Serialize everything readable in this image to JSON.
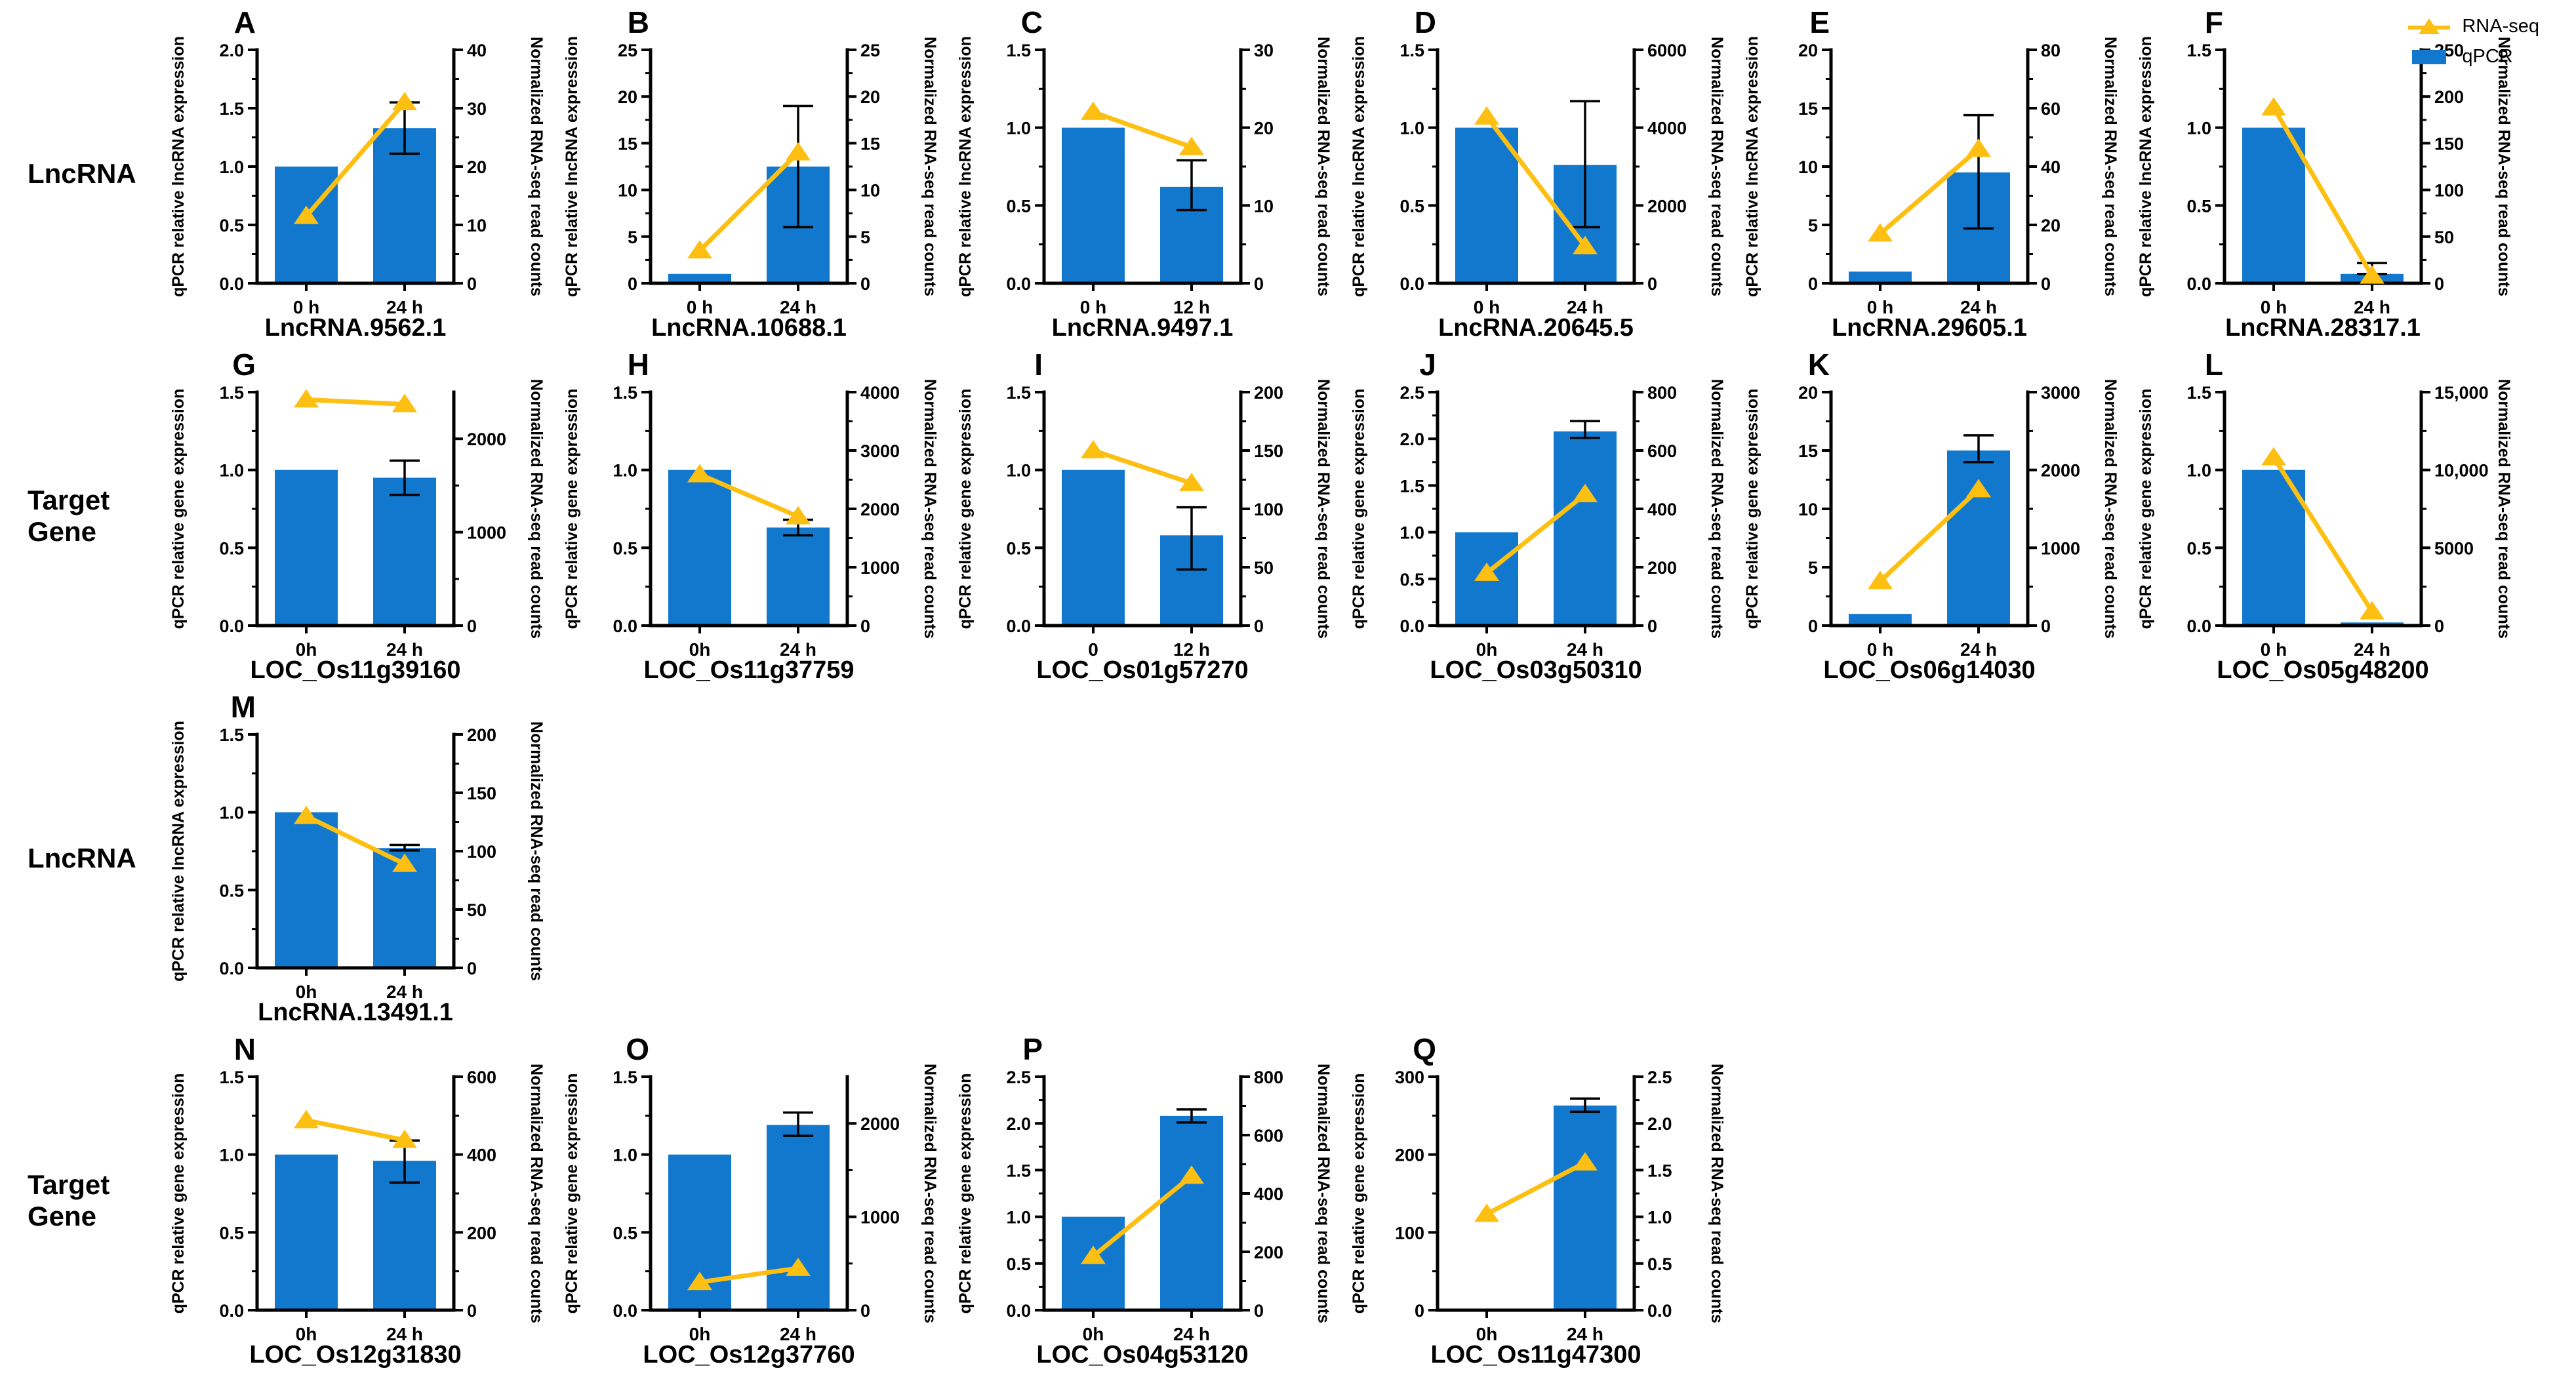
{
  "figure": {
    "row_labels": [
      "LncRNA",
      "Target Gene",
      "LncRNA",
      "Target Gene"
    ],
    "legend": [
      {
        "label": "RNA-seq",
        "icon": "triangle-line-icon"
      },
      {
        "label": "qPCR",
        "icon": "blue-square-icon"
      }
    ],
    "colors": {
      "qpcr_bar": "#1178cd",
      "rnaseq_line": "#fdc012",
      "axis": "#000000"
    }
  },
  "chart_data": [
    {
      "type": "bar+line",
      "letter": "A",
      "row": 1,
      "col": 1,
      "title": "LncRNA.9562.1",
      "ylabel_left": "qPCR relative lncRNA expression",
      "ylabel_right": "Normalized RNA-seq read counts",
      "categories": [
        "0 h",
        "24 h"
      ],
      "lmax": 2.0,
      "lticks": {
        "v": [
          0,
          0.5,
          1,
          1.5,
          2
        ],
        "l": [
          "0.0",
          "0.5",
          "1.0",
          "1.5",
          "2.0"
        ]
      },
      "rmax": 40,
      "rticks": {
        "v": [
          0,
          10,
          20,
          30,
          40
        ],
        "l": [
          "0",
          "10",
          "20",
          "30",
          "40"
        ]
      },
      "qpcr": [
        1.0,
        1.33
      ],
      "err": [
        null,
        [
          1.11,
          1.55
        ]
      ],
      "rnaseq_right": [
        11.5,
        31
      ]
    },
    {
      "type": "bar+line",
      "letter": "B",
      "row": 1,
      "col": 2,
      "title": "LncRNA.10688.1",
      "ylabel_left": "qPCR relative lncRNA expression",
      "ylabel_right": "Normalized RNA-seq read counts",
      "categories": [
        "0 h",
        "24 h"
      ],
      "lmax": 25,
      "lticks": {
        "v": [
          0,
          5,
          10,
          15,
          20,
          25
        ],
        "l": [
          "0",
          "5",
          "10",
          "15",
          "20",
          "25"
        ]
      },
      "rmax": 25,
      "rticks": {
        "v": [
          0,
          5,
          10,
          15,
          20,
          25
        ],
        "l": [
          "0",
          "5",
          "10",
          "15",
          "20",
          "25"
        ]
      },
      "qpcr": [
        1,
        12.5
      ],
      "err": [
        null,
        [
          6,
          19
        ]
      ],
      "rnaseq_right": [
        3.5,
        14
      ]
    },
    {
      "type": "bar+line",
      "letter": "C",
      "row": 1,
      "col": 3,
      "title": "LncRNA.9497.1",
      "ylabel_left": "qPCR relative lncRNA expression",
      "ylabel_right": "Normalized RNA-seq read counts",
      "categories": [
        "0 h",
        "12 h"
      ],
      "lmax": 1.5,
      "lticks": {
        "v": [
          0,
          0.5,
          1,
          1.5
        ],
        "l": [
          "0.0",
          "0.5",
          "1.0",
          "1.5"
        ]
      },
      "rmax": 30,
      "rticks": {
        "v": [
          0,
          10,
          20,
          30
        ],
        "l": [
          "0",
          "10",
          "20",
          "30"
        ]
      },
      "qpcr": [
        1.0,
        0.62
      ],
      "err": [
        null,
        [
          0.47,
          0.79
        ]
      ],
      "rnaseq_right": [
        22,
        17.5
      ]
    },
    {
      "type": "bar+line",
      "letter": "D",
      "row": 1,
      "col": 4,
      "title": "LncRNA.20645.5",
      "ylabel_left": "qPCR relative lncRNA expression",
      "ylabel_right": "Normalized RNA-seq read counts",
      "categories": [
        "0 h",
        "24 h"
      ],
      "lmax": 1.5,
      "lticks": {
        "v": [
          0,
          0.5,
          1,
          1.5
        ],
        "l": [
          "0.0",
          "0.5",
          "1.0",
          "1.5"
        ]
      },
      "rmax": 6000,
      "rticks": {
        "v": [
          0,
          2000,
          4000,
          6000
        ],
        "l": [
          "0",
          "2000",
          "4000",
          "6000"
        ]
      },
      "qpcr": [
        1.0,
        0.76
      ],
      "err": [
        null,
        [
          0.36,
          1.17
        ]
      ],
      "rnaseq_right": [
        4280,
        950
      ]
    },
    {
      "type": "bar+line",
      "letter": "E",
      "row": 1,
      "col": 5,
      "title": "LncRNA.29605.1",
      "ylabel_left": "qPCR relative lncRNA expression",
      "ylabel_right": "Normalized RNA-seq read counts",
      "categories": [
        "0 h",
        "24 h"
      ],
      "lmax": 20,
      "lticks": {
        "v": [
          0,
          5,
          10,
          15,
          20
        ],
        "l": [
          "0",
          "5",
          "10",
          "15",
          "20"
        ]
      },
      "rmax": 80,
      "rticks": {
        "v": [
          0,
          20,
          40,
          60,
          80
        ],
        "l": [
          "0",
          "20",
          "40",
          "60",
          "80"
        ]
      },
      "qpcr": [
        1,
        9.5
      ],
      "err": [
        null,
        [
          4.7,
          14.4
        ]
      ],
      "rnaseq_right": [
        17,
        46
      ]
    },
    {
      "type": "bar+line",
      "letter": "F",
      "row": 1,
      "col": 6,
      "title": "LncRNA.28317.1",
      "ylabel_left": "qPCR relative lncRNA expression",
      "ylabel_right": "Normalized RNA-seq read counts",
      "categories": [
        "0 h",
        "24 h"
      ],
      "lmax": 1.5,
      "lticks": {
        "v": [
          0,
          0.5,
          1,
          1.5
        ],
        "l": [
          "0.0",
          "0.5",
          "1.0",
          "1.5"
        ]
      },
      "rmax": 250,
      "rticks": {
        "v": [
          0,
          50,
          100,
          150,
          200,
          250
        ],
        "l": [
          "0",
          "50",
          "100",
          "150",
          "200",
          "250"
        ]
      },
      "qpcr": [
        1.0,
        0.06
      ],
      "err": [
        null,
        [
          0.06,
          0.13
        ]
      ],
      "rnaseq_right": [
        188,
        8
      ]
    },
    {
      "type": "bar+line",
      "letter": "G",
      "row": 2,
      "col": 1,
      "title": "LOC_Os11g39160",
      "ylabel_left": "qPCR relative gene expression",
      "ylabel_right": "Normalized RNA-seq read counts",
      "categories": [
        "0h",
        "24 h"
      ],
      "lmax": 1.5,
      "lticks": {
        "v": [
          0,
          0.5,
          1,
          1.5
        ],
        "l": [
          "0.0",
          "0.5",
          "1.0",
          "1.5"
        ]
      },
      "rmax": 2500,
      "rticks": {
        "v": [
          0,
          1000,
          2000
        ],
        "l": [
          "0",
          "1000",
          "2000"
        ]
      },
      "qpcr": [
        1.0,
        0.95
      ],
      "err": [
        null,
        [
          0.84,
          1.06
        ]
      ],
      "rnaseq_right": [
        2420,
        2370
      ]
    },
    {
      "type": "bar+line",
      "letter": "H",
      "row": 2,
      "col": 2,
      "title": "LOC_Os11g37759",
      "ylabel_left": "qPCR relative gene expression",
      "ylabel_right": "Normalized RNA-seq read counts",
      "categories": [
        "0h",
        "24 h"
      ],
      "lmax": 1.5,
      "lticks": {
        "v": [
          0,
          0.5,
          1,
          1.5
        ],
        "l": [
          "0.0",
          "0.5",
          "1.0",
          "1.5"
        ]
      },
      "rmax": 4000,
      "rticks": {
        "v": [
          0,
          1000,
          2000,
          3000,
          4000
        ],
        "l": [
          "0",
          "1000",
          "2000",
          "3000",
          "4000"
        ]
      },
      "qpcr": [
        1.0,
        0.63
      ],
      "err": [
        null,
        [
          0.58,
          0.68
        ]
      ],
      "rnaseq_right": [
        2590,
        1870
      ]
    },
    {
      "type": "bar+line",
      "letter": "I",
      "row": 2,
      "col": 3,
      "title": "LOC_Os01g57270",
      "ylabel_left": "qPCR relative gene expression",
      "ylabel_right": "Normalized RNA-seq read counts",
      "categories": [
        "0",
        "12 h"
      ],
      "lmax": 1.5,
      "lticks": {
        "v": [
          0,
          0.5,
          1,
          1.5
        ],
        "l": [
          "0.0",
          "0.5",
          "1.0",
          "1.5"
        ]
      },
      "rmax": 200,
      "rticks": {
        "v": [
          0,
          50,
          100,
          150,
          200
        ],
        "l": [
          "0",
          "50",
          "100",
          "150",
          "200"
        ]
      },
      "qpcr": [
        1.0,
        0.58
      ],
      "err": [
        null,
        [
          0.36,
          0.76
        ]
      ],
      "rnaseq_right": [
        150,
        122
      ]
    },
    {
      "type": "bar+line",
      "letter": "J",
      "row": 2,
      "col": 4,
      "title": "LOC_Os03g50310",
      "ylabel_left": "qPCR relative gene expression",
      "ylabel_right": "Normalized RNA-seq read counts",
      "categories": [
        "0h",
        "24 h"
      ],
      "lmax": 2.5,
      "lticks": {
        "v": [
          0,
          0.5,
          1,
          1.5,
          2,
          2.5
        ],
        "l": [
          "0.0",
          "0.5",
          "1.0",
          "1.5",
          "2.0",
          "2.5"
        ]
      },
      "rmax": 800,
      "rticks": {
        "v": [
          0,
          200,
          400,
          600,
          800
        ],
        "l": [
          "0",
          "200",
          "400",
          "600",
          "800"
        ]
      },
      "qpcr": [
        1.0,
        2.08
      ],
      "err": [
        null,
        [
          2.01,
          2.19
        ]
      ],
      "rnaseq_right": [
        180,
        450
      ]
    },
    {
      "type": "bar+line",
      "letter": "K",
      "row": 2,
      "col": 5,
      "title": "LOC_Os06g14030",
      "ylabel_left": "qPCR relative gene expression",
      "ylabel_right": "Normalized RNA-seq read counts",
      "categories": [
        "0 h",
        "24 h"
      ],
      "lmax": 20,
      "lticks": {
        "v": [
          0,
          5,
          10,
          15,
          20
        ],
        "l": [
          "0",
          "5",
          "10",
          "15",
          "20"
        ]
      },
      "rmax": 3000,
      "rticks": {
        "v": [
          0,
          1000,
          2000,
          3000
        ],
        "l": [
          "0",
          "1000",
          "2000",
          "3000"
        ]
      },
      "qpcr": [
        1,
        15
      ],
      "err": [
        null,
        [
          14.0,
          16.3
        ]
      ],
      "rnaseq_right": [
        570,
        1750
      ]
    },
    {
      "type": "bar+line",
      "letter": "L",
      "row": 2,
      "col": 6,
      "title": "LOC_Os05g48200",
      "ylabel_left": "qPCR relative gene expression",
      "ylabel_right": "Normalized RNA-seq read counts",
      "categories": [
        "0 h",
        "24 h"
      ],
      "lmax": 1.5,
      "lticks": {
        "v": [
          0,
          0.5,
          1,
          1.5
        ],
        "l": [
          "0.0",
          "0.5",
          "1.0",
          "1.5"
        ]
      },
      "rmax": 15000,
      "rticks": {
        "v": [
          0,
          5000,
          10000,
          15000
        ],
        "l": [
          "0",
          "5000",
          "10,000",
          "15,000"
        ]
      },
      "qpcr": [
        1.0,
        0.02
      ],
      "err": [
        null,
        null
      ],
      "rnaseq_right": [
        10800,
        900
      ]
    },
    {
      "type": "bar+line",
      "letter": "M",
      "row": 3,
      "col": 1,
      "title": "LncRNA.13491.1",
      "ylabel_left": "qPCR relative lncRNA expression",
      "ylabel_right": "Normalized RNA-seq read counts",
      "categories": [
        "0h",
        "24 h"
      ],
      "lmax": 1.5,
      "lticks": {
        "v": [
          0,
          0.5,
          1,
          1.5
        ],
        "l": [
          "0.0",
          "0.5",
          "1.0",
          "1.5"
        ]
      },
      "rmax": 200,
      "rticks": {
        "v": [
          0,
          50,
          100,
          150,
          200
        ],
        "l": [
          "0",
          "50",
          "100",
          "150",
          "200"
        ]
      },
      "qpcr": [
        1.0,
        0.77
      ],
      "err": [
        null,
        [
          0.755,
          0.79
        ]
      ],
      "rnaseq_right": [
        130,
        89
      ]
    },
    {
      "type": "bar+line",
      "letter": "N",
      "row": 4,
      "col": 1,
      "title": "LOC_Os12g31830",
      "ylabel_left": "qPCR relative gene expression",
      "ylabel_right": "Normalized RNA-seq read counts",
      "categories": [
        "0h",
        "24 h"
      ],
      "lmax": 1.5,
      "lticks": {
        "v": [
          0,
          0.5,
          1,
          1.5
        ],
        "l": [
          "0.0",
          "0.5",
          "1.0",
          "1.5"
        ]
      },
      "rmax": 600,
      "rticks": {
        "v": [
          0,
          200,
          400,
          600
        ],
        "l": [
          "0",
          "200",
          "400",
          "600"
        ]
      },
      "qpcr": [
        1.0,
        0.96
      ],
      "err": [
        null,
        [
          0.82,
          1.09
        ]
      ],
      "rnaseq_right": [
        488,
        437
      ]
    },
    {
      "type": "bar+line",
      "letter": "O",
      "row": 4,
      "col": 2,
      "title": "LOC_Os12g37760",
      "ylabel_left": "qPCR relative gene expression",
      "ylabel_right": "Normalized RNA-seq read counts",
      "categories": [
        "0h",
        "24 h"
      ],
      "lmax": 1.5,
      "lticks": {
        "v": [
          0,
          0.5,
          1,
          1.5
        ],
        "l": [
          "0.0",
          "0.5",
          "1.0",
          "1.5"
        ]
      },
      "rmax": 2500,
      "rticks": {
        "v": [
          0,
          1000,
          2000
        ],
        "l": [
          "0",
          "1000",
          "2000"
        ]
      },
      "qpcr": [
        1.0,
        1.19
      ],
      "err": [
        null,
        [
          1.12,
          1.27
        ]
      ],
      "rnaseq_right": [
        300,
        450
      ]
    },
    {
      "type": "bar+line",
      "letter": "P",
      "row": 4,
      "col": 3,
      "title": "LOC_Os04g53120",
      "ylabel_left": "qPCR relative gene expression",
      "ylabel_right": "Normalized RNA-seq read counts",
      "categories": [
        "0h",
        "24 h"
      ],
      "lmax": 2.5,
      "lticks": {
        "v": [
          0,
          0.5,
          1,
          1.5,
          2,
          2.5
        ],
        "l": [
          "0.0",
          "0.5",
          "1.0",
          "1.5",
          "2.0",
          "2.5"
        ]
      },
      "rmax": 800,
      "rticks": {
        "v": [
          0,
          200,
          400,
          600,
          800
        ],
        "l": [
          "0",
          "200",
          "400",
          "600",
          "800"
        ]
      },
      "qpcr": [
        1.0,
        2.08
      ],
      "err": [
        null,
        [
          2.01,
          2.15
        ]
      ],
      "rnaseq_right": [
        185,
        460
      ]
    },
    {
      "type": "bar+line",
      "letter": "Q",
      "row": 4,
      "col": 4,
      "title": "LOC_Os11g47300",
      "ylabel_left": "qPCR relative gene expression",
      "ylabel_right": "Normalized RNA-seq read counts",
      "categories": [
        "0h",
        "24 h"
      ],
      "lmax": 300,
      "lticks": {
        "v": [
          0,
          100,
          200,
          300
        ],
        "l": [
          "0",
          "100",
          "200",
          "300"
        ]
      },
      "rmax": 2.5,
      "rticks": {
        "v": [
          0,
          0.5,
          1,
          1.5,
          2,
          2.5
        ],
        "l": [
          "0.0",
          "0.5",
          "1.0",
          "1.5",
          "2.0",
          "2.5"
        ]
      },
      "qpcr": [
        1,
        263
      ],
      "err": [
        null,
        [
          255,
          272
        ]
      ],
      "rnaseq_right": [
        1.03,
        1.58
      ]
    }
  ]
}
